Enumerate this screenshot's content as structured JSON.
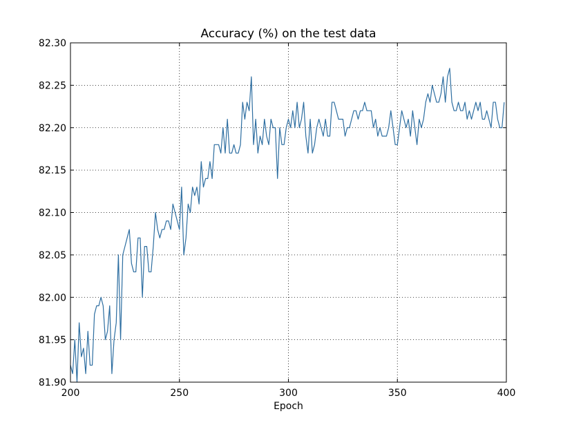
{
  "chart_data": {
    "type": "line",
    "title": "Accuracy (%) on the test data",
    "xlabel": "Epoch",
    "ylabel": "",
    "xlim": [
      200,
      400
    ],
    "ylim": [
      81.9,
      82.3
    ],
    "x_ticks": [
      "200",
      "250",
      "300",
      "350",
      "400"
    ],
    "y_ticks": [
      "81.90",
      "81.95",
      "82.00",
      "82.05",
      "82.10",
      "82.15",
      "82.20",
      "82.25",
      "82.30"
    ],
    "grid": true,
    "series": [
      {
        "color": "#2c6da0",
        "x_start": 200,
        "x_step": 1,
        "values": [
          81.92,
          81.91,
          81.95,
          81.9,
          81.97,
          81.93,
          81.94,
          81.91,
          81.96,
          81.92,
          81.92,
          81.98,
          81.99,
          81.99,
          82.0,
          81.99,
          81.95,
          81.96,
          81.99,
          81.91,
          81.95,
          81.97,
          82.05,
          81.95,
          82.05,
          82.06,
          82.07,
          82.08,
          82.04,
          82.03,
          82.03,
          82.07,
          82.07,
          82.0,
          82.06,
          82.06,
          82.03,
          82.03,
          82.06,
          82.1,
          82.08,
          82.07,
          82.08,
          82.08,
          82.09,
          82.09,
          82.08,
          82.11,
          82.1,
          82.09,
          82.08,
          82.13,
          82.05,
          82.07,
          82.11,
          82.1,
          82.13,
          82.12,
          82.13,
          82.11,
          82.16,
          82.13,
          82.14,
          82.14,
          82.16,
          82.14,
          82.18,
          82.18,
          82.18,
          82.17,
          82.2,
          82.17,
          82.21,
          82.17,
          82.17,
          82.18,
          82.17,
          82.17,
          82.18,
          82.23,
          82.21,
          82.23,
          82.22,
          82.26,
          82.18,
          82.21,
          82.17,
          82.19,
          82.18,
          82.21,
          82.19,
          82.18,
          82.21,
          82.2,
          82.2,
          82.14,
          82.2,
          82.18,
          82.18,
          82.2,
          82.21,
          82.2,
          82.22,
          82.2,
          82.23,
          82.2,
          82.21,
          82.23,
          82.19,
          82.17,
          82.21,
          82.17,
          82.18,
          82.2,
          82.21,
          82.2,
          82.19,
          82.21,
          82.19,
          82.19,
          82.23,
          82.23,
          82.22,
          82.21,
          82.21,
          82.21,
          82.19,
          82.2,
          82.2,
          82.21,
          82.22,
          82.22,
          82.21,
          82.22,
          82.22,
          82.23,
          82.22,
          82.22,
          82.22,
          82.2,
          82.21,
          82.19,
          82.2,
          82.19,
          82.19,
          82.19,
          82.2,
          82.22,
          82.2,
          82.18,
          82.18,
          82.2,
          82.22,
          82.21,
          82.2,
          82.21,
          82.19,
          82.22,
          82.2,
          82.18,
          82.21,
          82.2,
          82.21,
          82.23,
          82.24,
          82.23,
          82.25,
          82.24,
          82.23,
          82.23,
          82.24,
          82.26,
          82.23,
          82.26,
          82.27,
          82.23,
          82.22,
          82.22,
          82.23,
          82.22,
          82.22,
          82.23,
          82.21,
          82.22,
          82.21,
          82.22,
          82.23,
          82.22,
          82.23,
          82.21,
          82.21,
          82.22,
          82.21,
          82.2,
          82.23,
          82.23,
          82.21,
          82.2,
          82.2,
          82.23
        ]
      }
    ]
  }
}
